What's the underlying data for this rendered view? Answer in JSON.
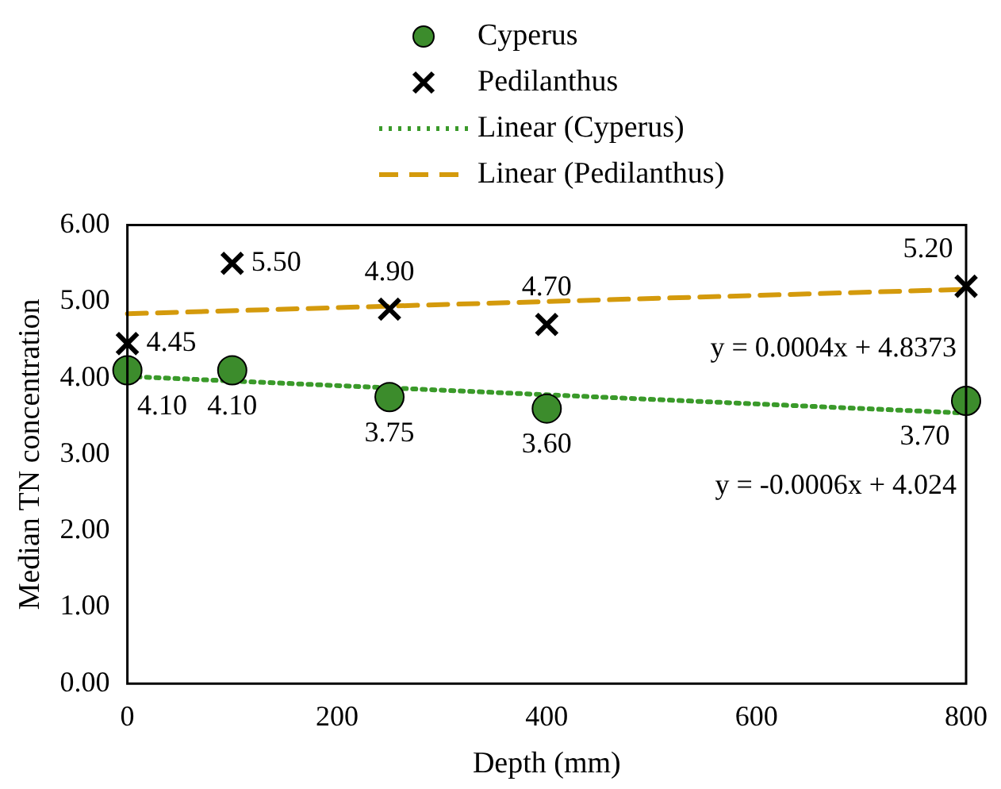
{
  "chart_data": {
    "type": "scatter",
    "xlabel": "Depth (mm)",
    "ylabel": "Median TN concentration",
    "xlim": [
      0,
      800
    ],
    "xticks": [
      0,
      200,
      400,
      600,
      800
    ],
    "ylim": [
      0,
      6
    ],
    "yticks": [
      {
        "value": 0,
        "label": "0.00"
      },
      {
        "value": 1,
        "label": "1.00"
      },
      {
        "value": 2,
        "label": "2.00"
      },
      {
        "value": 3,
        "label": "3.00"
      },
      {
        "value": 4,
        "label": "4.00"
      },
      {
        "value": 5,
        "label": "5.00"
      },
      {
        "value": 6,
        "label": "6.00"
      }
    ],
    "grid": false,
    "legend": "top",
    "series": [
      {
        "name": "Cyperus",
        "type": "scatter",
        "marker": "circle",
        "color": "#3c8c2c",
        "x": [
          0,
          100,
          250,
          400,
          800
        ],
        "values": [
          4.1,
          4.1,
          3.75,
          3.6,
          3.7
        ],
        "value_labels": [
          "4.10",
          "4.10",
          "3.75",
          "3.60",
          "3.70"
        ]
      },
      {
        "name": "Pedilanthus",
        "type": "scatter",
        "marker": "cross",
        "color": "#000000",
        "x": [
          0,
          100,
          250,
          400,
          800
        ],
        "values": [
          4.45,
          5.5,
          4.9,
          4.7,
          5.2
        ],
        "value_labels": [
          "4.45",
          "5.50",
          "4.90",
          "4.70",
          "5.20"
        ]
      },
      {
        "name": "Linear (Cyperus)",
        "type": "line",
        "marker": "none",
        "line_style": "dotted",
        "color": "#3a9a2a",
        "x": [
          0,
          800
        ],
        "values": [
          4.02,
          3.54
        ]
      },
      {
        "name": "Linear (Pedilanthus)",
        "type": "line",
        "marker": "none",
        "line_style": "dashed",
        "color": "#d49a0c",
        "x": [
          0,
          800
        ],
        "values": [
          4.84,
          5.16
        ]
      }
    ],
    "annotations": [
      "y = 0.0004x + 4.8373",
      "y = -0.0006x + 4.024"
    ]
  }
}
